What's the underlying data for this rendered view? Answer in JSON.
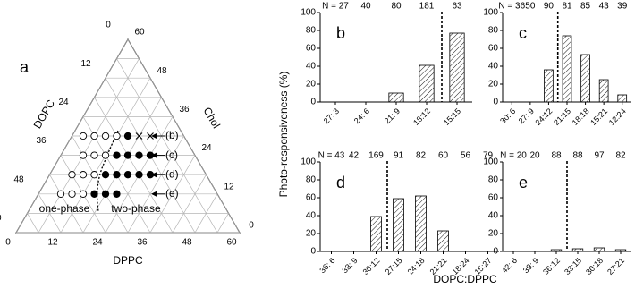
{
  "figure": {
    "y_label": "Photo-responsiveness (%)",
    "x_label": "DOPC:DPPC"
  },
  "ternary": {
    "panel": "a",
    "lim": [
      0,
      60
    ],
    "axes": {
      "bottom": {
        "label": "DPPC",
        "ticks": [
          0,
          12,
          24,
          36,
          48,
          60
        ]
      },
      "left": {
        "label": "DOPC",
        "ticks": [
          0,
          12,
          24,
          36,
          48,
          60
        ]
      },
      "right": {
        "label": "Chol",
        "ticks": [
          0,
          12,
          24,
          36,
          48,
          60
        ]
      }
    },
    "rows": [
      {
        "label": "(b)",
        "chol": 30,
        "points": [
          {
            "dppc": 3,
            "marker": "open"
          },
          {
            "dppc": 6,
            "marker": "open"
          },
          {
            "dppc": 9,
            "marker": "open"
          },
          {
            "dppc": 12,
            "marker": "open"
          },
          {
            "dppc": 15,
            "marker": "filled"
          },
          {
            "dppc": 18,
            "marker": "cross"
          },
          {
            "dppc": 21,
            "marker": "cross"
          }
        ]
      },
      {
        "label": "(c)",
        "chol": 24,
        "points": [
          {
            "dppc": 6,
            "marker": "open"
          },
          {
            "dppc": 9,
            "marker": "open"
          },
          {
            "dppc": 12,
            "marker": "open"
          },
          {
            "dppc": 15,
            "marker": "filled"
          },
          {
            "dppc": 18,
            "marker": "filled"
          },
          {
            "dppc": 21,
            "marker": "filled"
          },
          {
            "dppc": 24,
            "marker": "filled"
          }
        ]
      },
      {
        "label": "(d)",
        "chol": 18,
        "points": [
          {
            "dppc": 6,
            "marker": "open"
          },
          {
            "dppc": 9,
            "marker": "open"
          },
          {
            "dppc": 12,
            "marker": "open"
          },
          {
            "dppc": 15,
            "marker": "filled"
          },
          {
            "dppc": 18,
            "marker": "filled"
          },
          {
            "dppc": 21,
            "marker": "filled"
          },
          {
            "dppc": 24,
            "marker": "filled"
          },
          {
            "dppc": 27,
            "marker": "filled"
          }
        ]
      },
      {
        "label": "(e)",
        "chol": 12,
        "points": [
          {
            "dppc": 6,
            "marker": "open"
          },
          {
            "dppc": 9,
            "marker": "open"
          },
          {
            "dppc": 12,
            "marker": "open"
          },
          {
            "dppc": 15,
            "marker": "filled"
          },
          {
            "dppc": 18,
            "marker": "filled"
          },
          {
            "dppc": 21,
            "marker": "filled"
          }
        ]
      }
    ],
    "regions": [
      "one-phase",
      "two-phase"
    ]
  },
  "chart_data": [
    {
      "type": "bar",
      "panel": "b",
      "categories": [
        "27: 3",
        "24: 6",
        "21: 9",
        "18:12",
        "15:15"
      ],
      "values": [
        0,
        0,
        10,
        41,
        77
      ],
      "n_labels": [
        "N = 27",
        "40",
        "80",
        "181",
        "63"
      ],
      "ylim": [
        0,
        100
      ],
      "yticks": [
        0,
        20,
        40,
        60,
        80,
        100
      ],
      "phase_boundary": 3.5
    },
    {
      "type": "bar",
      "panel": "c",
      "categories": [
        "30: 6",
        "27: 9",
        "24:12",
        "21:15",
        "18:18",
        "15:21",
        "12:24"
      ],
      "values": [
        0,
        0,
        36,
        74,
        53,
        25,
        8
      ],
      "n_labels": [
        "N = 36",
        "50",
        "90",
        "81",
        "85",
        "43",
        "39"
      ],
      "ylim": [
        0,
        100
      ],
      "yticks": [
        0,
        20,
        40,
        60,
        80,
        100
      ],
      "phase_boundary": 2.5
    },
    {
      "type": "bar",
      "panel": "d",
      "categories": [
        "36: 6",
        "33: 9",
        "30:12",
        "27:15",
        "24:18",
        "21:21",
        "18:24",
        "15:27"
      ],
      "values": [
        0,
        0,
        39,
        59,
        62,
        23,
        0,
        0
      ],
      "n_labels": [
        "N = 43",
        "42",
        "169",
        "91",
        "82",
        "60",
        "56",
        "79"
      ],
      "ylim": [
        0,
        100
      ],
      "yticks": [
        0,
        20,
        40,
        60,
        80,
        100
      ],
      "phase_boundary": 2.5
    },
    {
      "type": "bar",
      "panel": "e",
      "categories": [
        "42: 6",
        "39: 9",
        "36:12",
        "33:15",
        "30:18",
        "27:21"
      ],
      "values": [
        0,
        0,
        2,
        3,
        4,
        2
      ],
      "n_labels": [
        "N = 20",
        "20",
        "88",
        "88",
        "97",
        "82"
      ],
      "ylim": [
        0,
        100
      ],
      "yticks": [
        0,
        20,
        40,
        60,
        80,
        100
      ],
      "phase_boundary": 2.5
    }
  ]
}
